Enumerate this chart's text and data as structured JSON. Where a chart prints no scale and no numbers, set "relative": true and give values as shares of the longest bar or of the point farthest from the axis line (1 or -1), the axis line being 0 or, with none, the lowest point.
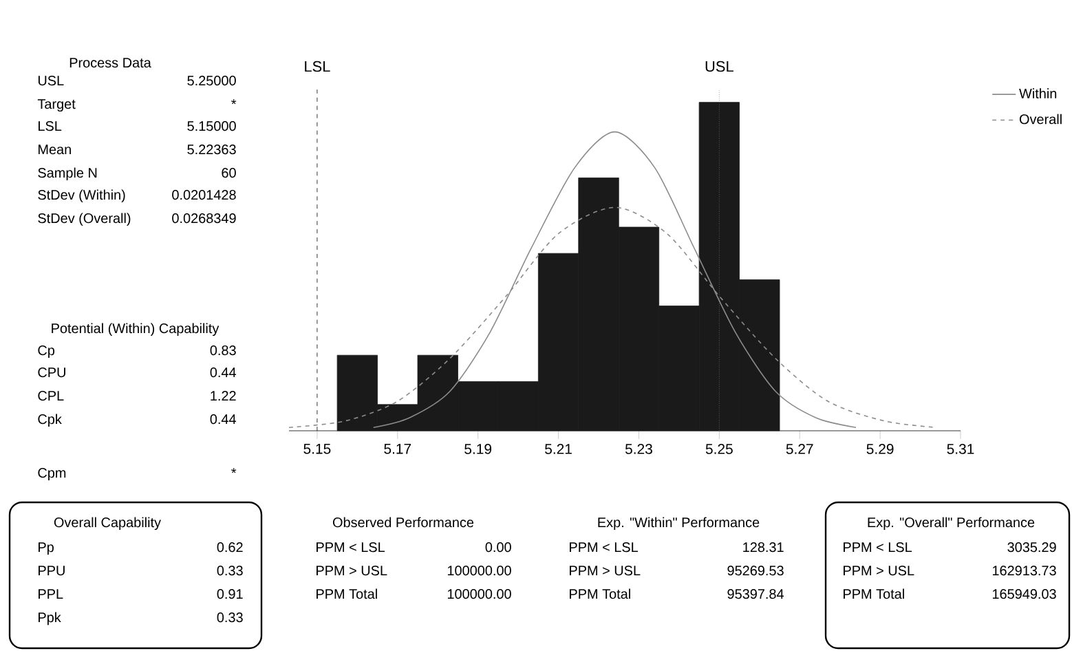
{
  "chart_data": {
    "type": "histogram",
    "relative": true,
    "bins": [
      5.155,
      5.165,
      5.175,
      5.185,
      5.195,
      5.205,
      5.215,
      5.225,
      5.235,
      5.245,
      5.255,
      5.265
    ],
    "values": [
      0.23,
      0.08,
      0.23,
      0.15,
      0.15,
      0.54,
      0.77,
      0.62,
      0.38,
      1,
      0.46
    ],
    "color": "#1a1a1a",
    "series": [
      {
        "name": "Within",
        "type": "line",
        "color": "#8c8c8c",
        "line_style": "solid",
        "x": [
          5.164,
          5.173,
          5.183,
          5.193,
          5.203,
          5.214,
          5.224,
          5.234,
          5.244,
          5.254,
          5.264,
          5.274,
          5.284
        ],
        "values": [
          0.01,
          0.04,
          0.12,
          0.3,
          0.55,
          0.8,
          0.91,
          0.8,
          0.55,
          0.3,
          0.12,
          0.04,
          0.01
        ]
      },
      {
        "name": "Overall",
        "type": "line",
        "color": "#8c8c8c",
        "line_style": "dashed",
        "x": [
          5.143,
          5.157,
          5.17,
          5.183,
          5.197,
          5.21,
          5.224,
          5.237,
          5.25,
          5.264,
          5.277,
          5.291,
          5.304
        ],
        "values": [
          0.01,
          0.03,
          0.09,
          0.22,
          0.41,
          0.6,
          0.68,
          0.6,
          0.41,
          0.22,
          0.09,
          0.03,
          0.01
        ]
      }
    ],
    "xlim": [
      5.143,
      5.31
    ],
    "xticks": [
      5.15,
      5.17,
      5.19,
      5.21,
      5.23,
      5.25,
      5.27,
      5.29,
      5.31
    ],
    "ref_lines": [
      {
        "axis": "x",
        "value": 5.15,
        "label": "LSL",
        "line_style": "dashed",
        "color": "#000000"
      },
      {
        "axis": "x",
        "value": 5.25,
        "label": "USL",
        "line_style": "dotted",
        "color": "#7f7f7f"
      }
    ],
    "legend": "right",
    "grid": false,
    "annotations": [
      "Process Data",
      "USL",
      "5.25000",
      "Target",
      "*",
      "LSL",
      "5.15000",
      "Mean",
      "5.22363",
      "Sample N",
      "60",
      "StDev (Within)",
      "0.0201428",
      "StDev (Overall)",
      "0.0268349",
      "Potential (Within) Capability",
      "Cp",
      "0.83",
      "CPU",
      "0.44",
      "CPL",
      "1.22",
      "Cpk",
      "0.44",
      "Cpm",
      "*",
      "Overall Capability",
      "Pp",
      "0.62",
      "PPU",
      "0.33",
      "PPL",
      "0.91",
      "Ppk",
      "0.33",
      "Observed Performance",
      "PPM < LSL",
      "0.00",
      "PPM > USL",
      "100000.00",
      "PPM Total",
      "100000.00",
      "Exp. \"Within\" Performance",
      "PPM < LSL",
      "128.31",
      "PPM > USL",
      "95269.53",
      "PPM Total",
      "95397.84",
      "Exp. \"Overall\" Performance",
      "PPM < LSL",
      "3035.29",
      "PPM > USL",
      "162913.73",
      "PPM Total",
      "165949.03"
    ]
  }
}
